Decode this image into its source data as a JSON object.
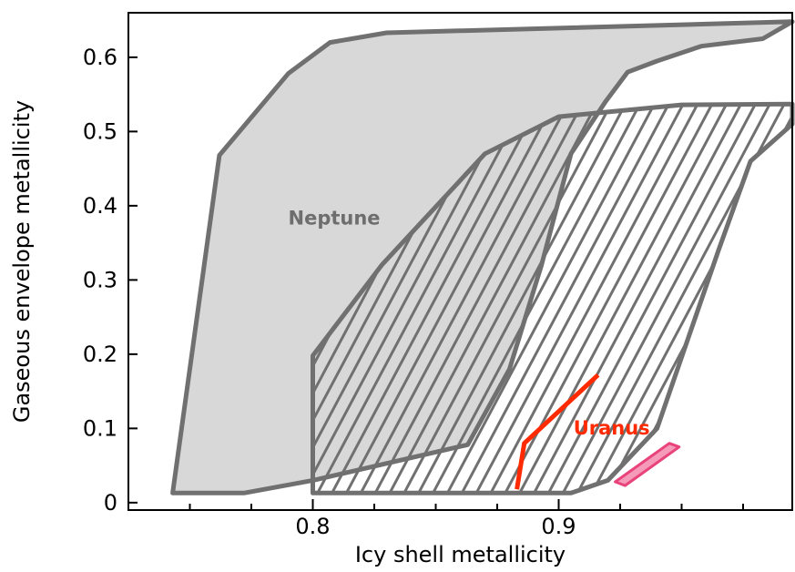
{
  "chart_data": {
    "type": "area",
    "xlabel": "Icy shell metallicity",
    "ylabel": "Gaseous envelope metallicity",
    "xlim": [
      0.725,
      0.995
    ],
    "ylim": [
      -0.01,
      0.66
    ],
    "x_ticks": [
      {
        "value": 0.8,
        "label": "0.8"
      },
      {
        "value": 0.9,
        "label": "0.9"
      }
    ],
    "x_minor_ticks": [
      0.75,
      0.775,
      0.825,
      0.85,
      0.875,
      0.925,
      0.95,
      0.975
    ],
    "y_ticks": [
      {
        "value": 0.0,
        "label": "0"
      },
      {
        "value": 0.1,
        "label": "0.1"
      },
      {
        "value": 0.2,
        "label": "0.2"
      },
      {
        "value": 0.3,
        "label": "0.3"
      },
      {
        "value": 0.4,
        "label": "0.4"
      },
      {
        "value": 0.5,
        "label": "0.5"
      },
      {
        "value": 0.6,
        "label": "0.6"
      }
    ],
    "grid": false,
    "series": [
      {
        "name": "Neptune",
        "style": "filled",
        "fill_color": "#d8d8d8",
        "edge_color": "#707070",
        "label_color": "#6e6e6e",
        "label_at": {
          "x": 0.79,
          "y": 0.375
        },
        "polygon": [
          {
            "x": 0.743,
            "y": 0.013
          },
          {
            "x": 0.772,
            "y": 0.013
          },
          {
            "x": 0.8,
            "y": 0.03
          },
          {
            "x": 0.863,
            "y": 0.078
          },
          {
            "x": 0.88,
            "y": 0.18
          },
          {
            "x": 0.893,
            "y": 0.32
          },
          {
            "x": 0.905,
            "y": 0.47
          },
          {
            "x": 0.919,
            "y": 0.54
          },
          {
            "x": 0.928,
            "y": 0.58
          },
          {
            "x": 0.94,
            "y": 0.595
          },
          {
            "x": 0.958,
            "y": 0.615
          },
          {
            "x": 0.983,
            "y": 0.625
          },
          {
            "x": 0.995,
            "y": 0.648
          },
          {
            "x": 0.83,
            "y": 0.633
          },
          {
            "x": 0.807,
            "y": 0.62
          },
          {
            "x": 0.79,
            "y": 0.578
          },
          {
            "x": 0.762,
            "y": 0.468
          }
        ]
      },
      {
        "name": "",
        "style": "hatched",
        "fill_color": "#ffffff",
        "edge_color": "#707070",
        "polygon": [
          {
            "x": 0.8,
            "y": 0.013
          },
          {
            "x": 0.905,
            "y": 0.013
          },
          {
            "x": 0.92,
            "y": 0.03
          },
          {
            "x": 0.94,
            "y": 0.1
          },
          {
            "x": 0.965,
            "y": 0.34
          },
          {
            "x": 0.978,
            "y": 0.46
          },
          {
            "x": 0.995,
            "y": 0.51
          },
          {
            "x": 0.995,
            "y": 0.537
          },
          {
            "x": 0.95,
            "y": 0.536
          },
          {
            "x": 0.9,
            "y": 0.52
          },
          {
            "x": 0.87,
            "y": 0.47
          },
          {
            "x": 0.828,
            "y": 0.32
          },
          {
            "x": 0.8,
            "y": 0.198
          }
        ]
      },
      {
        "name": "Uranus",
        "style": "line",
        "color": "#ff2a00",
        "label_color": "#ff2a00",
        "label_at": {
          "x": 0.906,
          "y": 0.092
        },
        "points": [
          {
            "x": 0.883,
            "y": 0.018
          },
          {
            "x": 0.886,
            "y": 0.08
          },
          {
            "x": 0.916,
            "y": 0.172
          }
        ]
      },
      {
        "name": "",
        "style": "outlined",
        "fill_color": "#f59ab8",
        "edge_color": "#e8437a",
        "polygon": [
          {
            "x": 0.923,
            "y": 0.028
          },
          {
            "x": 0.927,
            "y": 0.023
          },
          {
            "x": 0.949,
            "y": 0.075
          },
          {
            "x": 0.945,
            "y": 0.08
          }
        ]
      }
    ]
  }
}
